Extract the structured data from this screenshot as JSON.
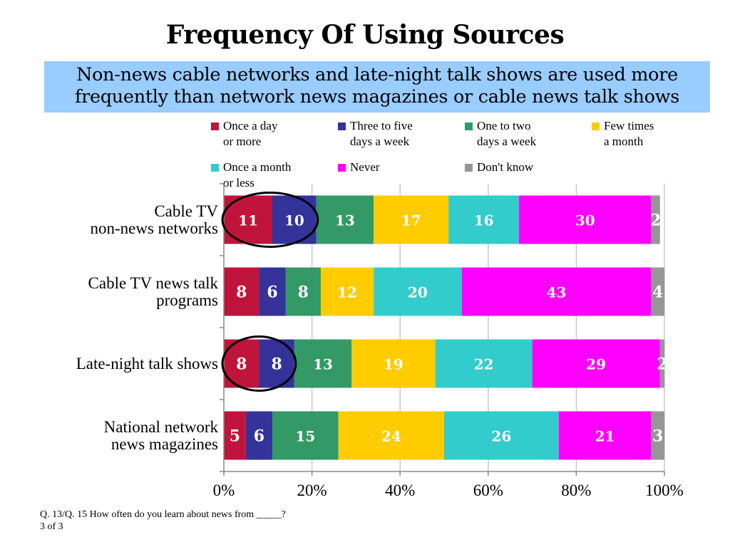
{
  "title": "Frequency Of Using Sources",
  "subtitle_line1": "Non-news cable networks and late-night talk shows are used more",
  "subtitle_line2": "frequently than network news magazines or cable news talk shows",
  "footnote": "Q. 13/Q. 15  How often do you learn about news from _____?\n3 of 3",
  "chart_data": {
    "type": "bar",
    "orientation": "horizontal",
    "stacked": true,
    "xlim": [
      0,
      100
    ],
    "x_ticks": [
      "0%",
      "20%",
      "40%",
      "60%",
      "80%",
      "100%"
    ],
    "grid": true,
    "legend_position": "top",
    "categories": [
      "Cable TV\nnon-news networks",
      "Cable TV news talk\nprograms",
      "Late-night talk shows",
      "National network\nnews magazines"
    ],
    "series": [
      {
        "name": "Once a day\nor more",
        "color": "#c0143c",
        "values": [
          11,
          8,
          8,
          5
        ]
      },
      {
        "name": "Three to five\ndays a week",
        "color": "#333399",
        "values": [
          10,
          6,
          8,
          6
        ]
      },
      {
        "name": "One to two\ndays a week",
        "color": "#339966",
        "values": [
          13,
          8,
          13,
          15
        ]
      },
      {
        "name": "Few times\na month",
        "color": "#ffcc00",
        "values": [
          17,
          12,
          19,
          24
        ]
      },
      {
        "name": "Once a month\nor less",
        "color": "#33cccc",
        "values": [
          16,
          20,
          22,
          26
        ]
      },
      {
        "name": "Never",
        "color": "#ff00ff",
        "values": [
          30,
          43,
          29,
          21
        ]
      },
      {
        "name": "Don't know",
        "color": "#969696",
        "values": [
          2,
          4,
          2,
          3
        ]
      }
    ],
    "annotations": [
      "circle around first two values of Cable TV non-news networks",
      "circle around first two values of Late-night talk shows"
    ]
  }
}
